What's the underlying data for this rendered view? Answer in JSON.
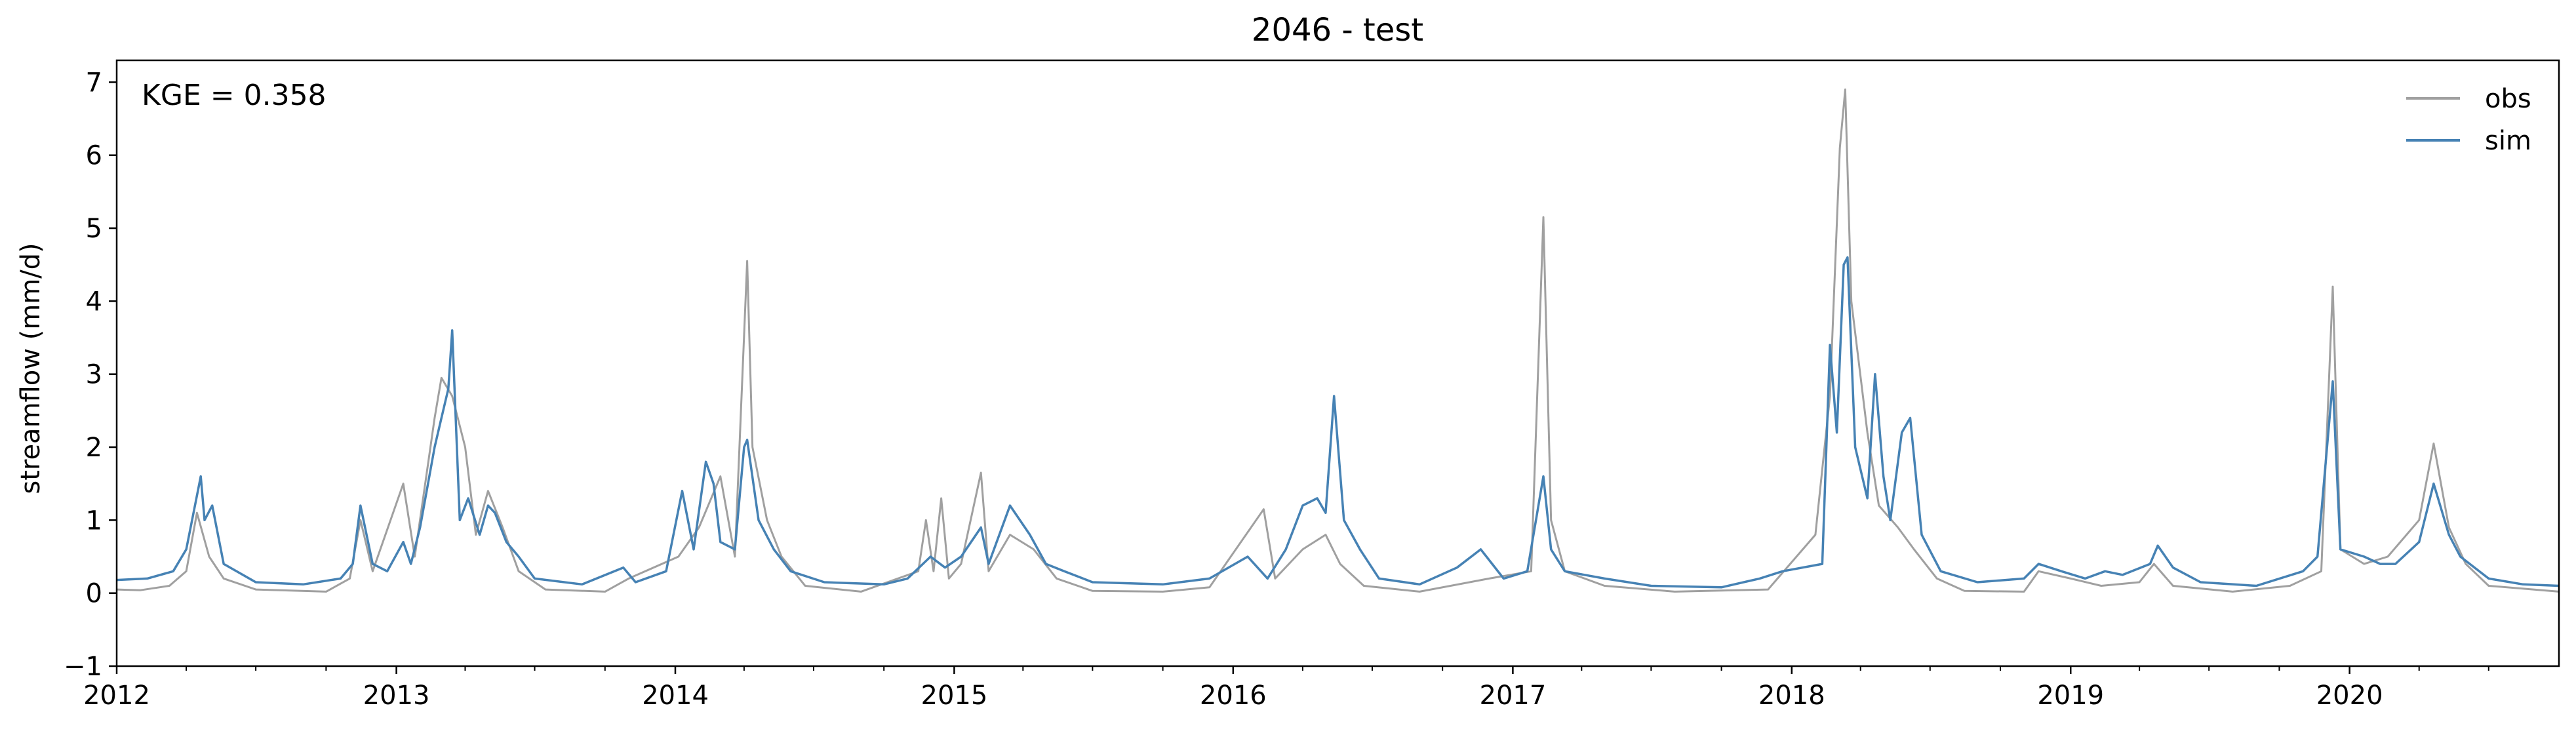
{
  "chart_data": {
    "type": "line",
    "title": "2046 - test",
    "xlabel": "",
    "ylabel": "streamflow (mm/d)",
    "annotation": "KGE = 0.358",
    "xlim": [
      "2012-01-01",
      "2020-10-01"
    ],
    "ylim": [
      -1,
      7.3
    ],
    "yticks": [
      -1,
      0,
      1,
      2,
      3,
      4,
      5,
      6,
      7
    ],
    "xticks": [
      "2012",
      "2013",
      "2014",
      "2015",
      "2016",
      "2017",
      "2018",
      "2019",
      "2020"
    ],
    "grid": false,
    "legend_position": "upper-right",
    "series": [
      {
        "name": "obs",
        "color": "#a0a0a0",
        "points": [
          [
            "2012-01-01",
            0.05
          ],
          [
            "2012-02-01",
            0.04
          ],
          [
            "2012-03-10",
            0.1
          ],
          [
            "2012-04-01",
            0.3
          ],
          [
            "2012-04-15",
            1.1
          ],
          [
            "2012-05-01",
            0.5
          ],
          [
            "2012-05-20",
            0.2
          ],
          [
            "2012-07-01",
            0.05
          ],
          [
            "2012-10-01",
            0.02
          ],
          [
            "2012-11-01",
            0.2
          ],
          [
            "2012-11-15",
            1.0
          ],
          [
            "2012-12-01",
            0.3
          ],
          [
            "2013-01-10",
            1.5
          ],
          [
            "2013-01-25",
            0.5
          ],
          [
            "2013-02-20",
            2.4
          ],
          [
            "2013-03-01",
            2.95
          ],
          [
            "2013-03-15",
            2.7
          ],
          [
            "2013-04-01",
            2.0
          ],
          [
            "2013-04-15",
            0.8
          ],
          [
            "2013-05-01",
            1.4
          ],
          [
            "2013-05-20",
            0.9
          ],
          [
            "2013-06-10",
            0.3
          ],
          [
            "2013-07-15",
            0.05
          ],
          [
            "2013-10-01",
            0.02
          ],
          [
            "2013-11-01",
            0.2
          ],
          [
            "2014-01-05",
            0.5
          ],
          [
            "2014-02-01",
            0.9
          ],
          [
            "2014-03-01",
            1.6
          ],
          [
            "2014-03-20",
            0.5
          ],
          [
            "2014-04-05",
            4.55
          ],
          [
            "2014-04-12",
            2.0
          ],
          [
            "2014-05-01",
            1.0
          ],
          [
            "2014-05-20",
            0.5
          ],
          [
            "2014-06-20",
            0.1
          ],
          [
            "2014-09-01",
            0.02
          ],
          [
            "2014-11-15",
            0.3
          ],
          [
            "2014-11-25",
            1.0
          ],
          [
            "2014-12-05",
            0.3
          ],
          [
            "2014-12-15",
            1.3
          ],
          [
            "2014-12-25",
            0.2
          ],
          [
            "2015-01-10",
            0.4
          ],
          [
            "2015-02-05",
            1.65
          ],
          [
            "2015-02-15",
            0.3
          ],
          [
            "2015-03-15",
            0.8
          ],
          [
            "2015-04-15",
            0.6
          ],
          [
            "2015-05-15",
            0.2
          ],
          [
            "2015-07-01",
            0.03
          ],
          [
            "2015-10-01",
            0.02
          ],
          [
            "2015-12-01",
            0.08
          ],
          [
            "2016-02-10",
            1.15
          ],
          [
            "2016-02-25",
            0.2
          ],
          [
            "2016-04-01",
            0.6
          ],
          [
            "2016-05-01",
            0.8
          ],
          [
            "2016-05-20",
            0.4
          ],
          [
            "2016-06-20",
            0.1
          ],
          [
            "2016-09-01",
            0.02
          ],
          [
            "2016-12-01",
            0.2
          ],
          [
            "2017-01-25",
            0.3
          ],
          [
            "2017-02-10",
            5.15
          ],
          [
            "2017-02-20",
            1.0
          ],
          [
            "2017-03-10",
            0.3
          ],
          [
            "2017-05-01",
            0.1
          ],
          [
            "2017-08-01",
            0.02
          ],
          [
            "2017-12-01",
            0.05
          ],
          [
            "2018-02-01",
            0.8
          ],
          [
            "2018-02-20",
            2.7
          ],
          [
            "2018-03-05",
            6.1
          ],
          [
            "2018-03-12",
            6.9
          ],
          [
            "2018-03-20",
            4.0
          ],
          [
            "2018-04-10",
            2.2
          ],
          [
            "2018-04-25",
            1.2
          ],
          [
            "2018-05-20",
            0.9
          ],
          [
            "2018-06-10",
            0.6
          ],
          [
            "2018-07-10",
            0.2
          ],
          [
            "2018-08-15",
            0.03
          ],
          [
            "2018-11-01",
            0.02
          ],
          [
            "2018-11-20",
            0.3
          ],
          [
            "2019-01-01",
            0.2
          ],
          [
            "2019-02-10",
            0.1
          ],
          [
            "2019-04-01",
            0.15
          ],
          [
            "2019-04-20",
            0.4
          ],
          [
            "2019-05-15",
            0.1
          ],
          [
            "2019-08-01",
            0.02
          ],
          [
            "2019-10-15",
            0.1
          ],
          [
            "2019-11-25",
            0.3
          ],
          [
            "2019-12-10",
            4.2
          ],
          [
            "2019-12-20",
            0.6
          ],
          [
            "2020-01-20",
            0.4
          ],
          [
            "2020-02-20",
            0.5
          ],
          [
            "2020-04-01",
            1.0
          ],
          [
            "2020-04-20",
            2.05
          ],
          [
            "2020-05-10",
            0.9
          ],
          [
            "2020-06-01",
            0.4
          ],
          [
            "2020-07-01",
            0.1
          ],
          [
            "2020-10-01",
            0.02
          ]
        ]
      },
      {
        "name": "sim",
        "color": "#4682b4",
        "points": [
          [
            "2012-01-01",
            0.18
          ],
          [
            "2012-02-10",
            0.2
          ],
          [
            "2012-03-15",
            0.3
          ],
          [
            "2012-04-01",
            0.6
          ],
          [
            "2012-04-20",
            1.6
          ],
          [
            "2012-04-25",
            1.0
          ],
          [
            "2012-05-05",
            1.2
          ],
          [
            "2012-05-20",
            0.4
          ],
          [
            "2012-07-01",
            0.15
          ],
          [
            "2012-09-01",
            0.12
          ],
          [
            "2012-10-20",
            0.2
          ],
          [
            "2012-11-05",
            0.4
          ],
          [
            "2012-11-15",
            1.2
          ],
          [
            "2012-12-01",
            0.4
          ],
          [
            "2012-12-20",
            0.3
          ],
          [
            "2013-01-10",
            0.7
          ],
          [
            "2013-01-20",
            0.4
          ],
          [
            "2013-02-01",
            0.9
          ],
          [
            "2013-02-20",
            2.0
          ],
          [
            "2013-03-01",
            2.4
          ],
          [
            "2013-03-10",
            2.8
          ],
          [
            "2013-03-15",
            3.6
          ],
          [
            "2013-03-25",
            1.0
          ],
          [
            "2013-04-05",
            1.3
          ],
          [
            "2013-04-20",
            0.8
          ],
          [
            "2013-05-01",
            1.2
          ],
          [
            "2013-05-10",
            1.1
          ],
          [
            "2013-05-25",
            0.7
          ],
          [
            "2013-06-10",
            0.5
          ],
          [
            "2013-07-01",
            0.2
          ],
          [
            "2013-09-01",
            0.12
          ],
          [
            "2013-10-25",
            0.35
          ],
          [
            "2013-11-10",
            0.15
          ],
          [
            "2013-12-20",
            0.3
          ],
          [
            "2014-01-10",
            1.4
          ],
          [
            "2014-01-25",
            0.6
          ],
          [
            "2014-02-10",
            1.8
          ],
          [
            "2014-02-20",
            1.5
          ],
          [
            "2014-03-01",
            0.7
          ],
          [
            "2014-03-20",
            0.6
          ],
          [
            "2014-04-01",
            2.0
          ],
          [
            "2014-04-05",
            2.1
          ],
          [
            "2014-04-20",
            1.0
          ],
          [
            "2014-05-10",
            0.6
          ],
          [
            "2014-06-01",
            0.3
          ],
          [
            "2014-07-15",
            0.15
          ],
          [
            "2014-10-01",
            0.12
          ],
          [
            "2014-11-01",
            0.2
          ],
          [
            "2014-12-01",
            0.5
          ],
          [
            "2014-12-20",
            0.35
          ],
          [
            "2015-01-10",
            0.5
          ],
          [
            "2015-02-05",
            0.9
          ],
          [
            "2015-02-15",
            0.4
          ],
          [
            "2015-03-01",
            0.8
          ],
          [
            "2015-03-15",
            1.2
          ],
          [
            "2015-04-10",
            0.8
          ],
          [
            "2015-05-01",
            0.4
          ],
          [
            "2015-05-25",
            0.3
          ],
          [
            "2015-07-01",
            0.15
          ],
          [
            "2015-10-01",
            0.12
          ],
          [
            "2015-12-01",
            0.2
          ],
          [
            "2016-01-20",
            0.5
          ],
          [
            "2016-02-15",
            0.2
          ],
          [
            "2016-03-10",
            0.6
          ],
          [
            "2016-04-01",
            1.2
          ],
          [
            "2016-04-20",
            1.3
          ],
          [
            "2016-05-01",
            1.1
          ],
          [
            "2016-05-12",
            2.7
          ],
          [
            "2016-05-25",
            1.0
          ],
          [
            "2016-06-15",
            0.6
          ],
          [
            "2016-07-10",
            0.2
          ],
          [
            "2016-09-01",
            0.12
          ],
          [
            "2016-10-20",
            0.35
          ],
          [
            "2016-11-20",
            0.6
          ],
          [
            "2016-12-20",
            0.2
          ],
          [
            "2017-01-20",
            0.3
          ],
          [
            "2017-02-10",
            1.6
          ],
          [
            "2017-02-20",
            0.6
          ],
          [
            "2017-03-10",
            0.3
          ],
          [
            "2017-05-01",
            0.2
          ],
          [
            "2017-07-01",
            0.1
          ],
          [
            "2017-10-01",
            0.08
          ],
          [
            "2017-11-20",
            0.2
          ],
          [
            "2017-12-20",
            0.3
          ],
          [
            "2018-02-10",
            0.4
          ],
          [
            "2018-02-20",
            3.4
          ],
          [
            "2018-03-01",
            2.2
          ],
          [
            "2018-03-10",
            4.5
          ],
          [
            "2018-03-15",
            4.6
          ],
          [
            "2018-03-25",
            2.0
          ],
          [
            "2018-04-10",
            1.3
          ],
          [
            "2018-04-20",
            3.0
          ],
          [
            "2018-05-01",
            1.6
          ],
          [
            "2018-05-10",
            1.0
          ],
          [
            "2018-05-25",
            2.2
          ],
          [
            "2018-06-05",
            2.4
          ],
          [
            "2018-06-20",
            0.8
          ],
          [
            "2018-07-15",
            0.3
          ],
          [
            "2018-09-01",
            0.15
          ],
          [
            "2018-11-01",
            0.2
          ],
          [
            "2018-11-20",
            0.4
          ],
          [
            "2018-12-20",
            0.3
          ],
          [
            "2019-01-20",
            0.2
          ],
          [
            "2019-02-15",
            0.3
          ],
          [
            "2019-03-10",
            0.25
          ],
          [
            "2019-04-15",
            0.4
          ],
          [
            "2019-04-25",
            0.65
          ],
          [
            "2019-05-15",
            0.35
          ],
          [
            "2019-06-20",
            0.15
          ],
          [
            "2019-09-01",
            0.1
          ],
          [
            "2019-11-01",
            0.3
          ],
          [
            "2019-11-20",
            0.5
          ],
          [
            "2019-12-10",
            2.9
          ],
          [
            "2019-12-20",
            0.6
          ],
          [
            "2020-01-20",
            0.5
          ],
          [
            "2020-02-10",
            0.4
          ],
          [
            "2020-03-01",
            0.4
          ],
          [
            "2020-04-01",
            0.7
          ],
          [
            "2020-04-20",
            1.5
          ],
          [
            "2020-05-10",
            0.8
          ],
          [
            "2020-05-25",
            0.5
          ],
          [
            "2020-07-01",
            0.2
          ],
          [
            "2020-08-15",
            0.12
          ],
          [
            "2020-10-01",
            0.1
          ]
        ]
      }
    ]
  }
}
